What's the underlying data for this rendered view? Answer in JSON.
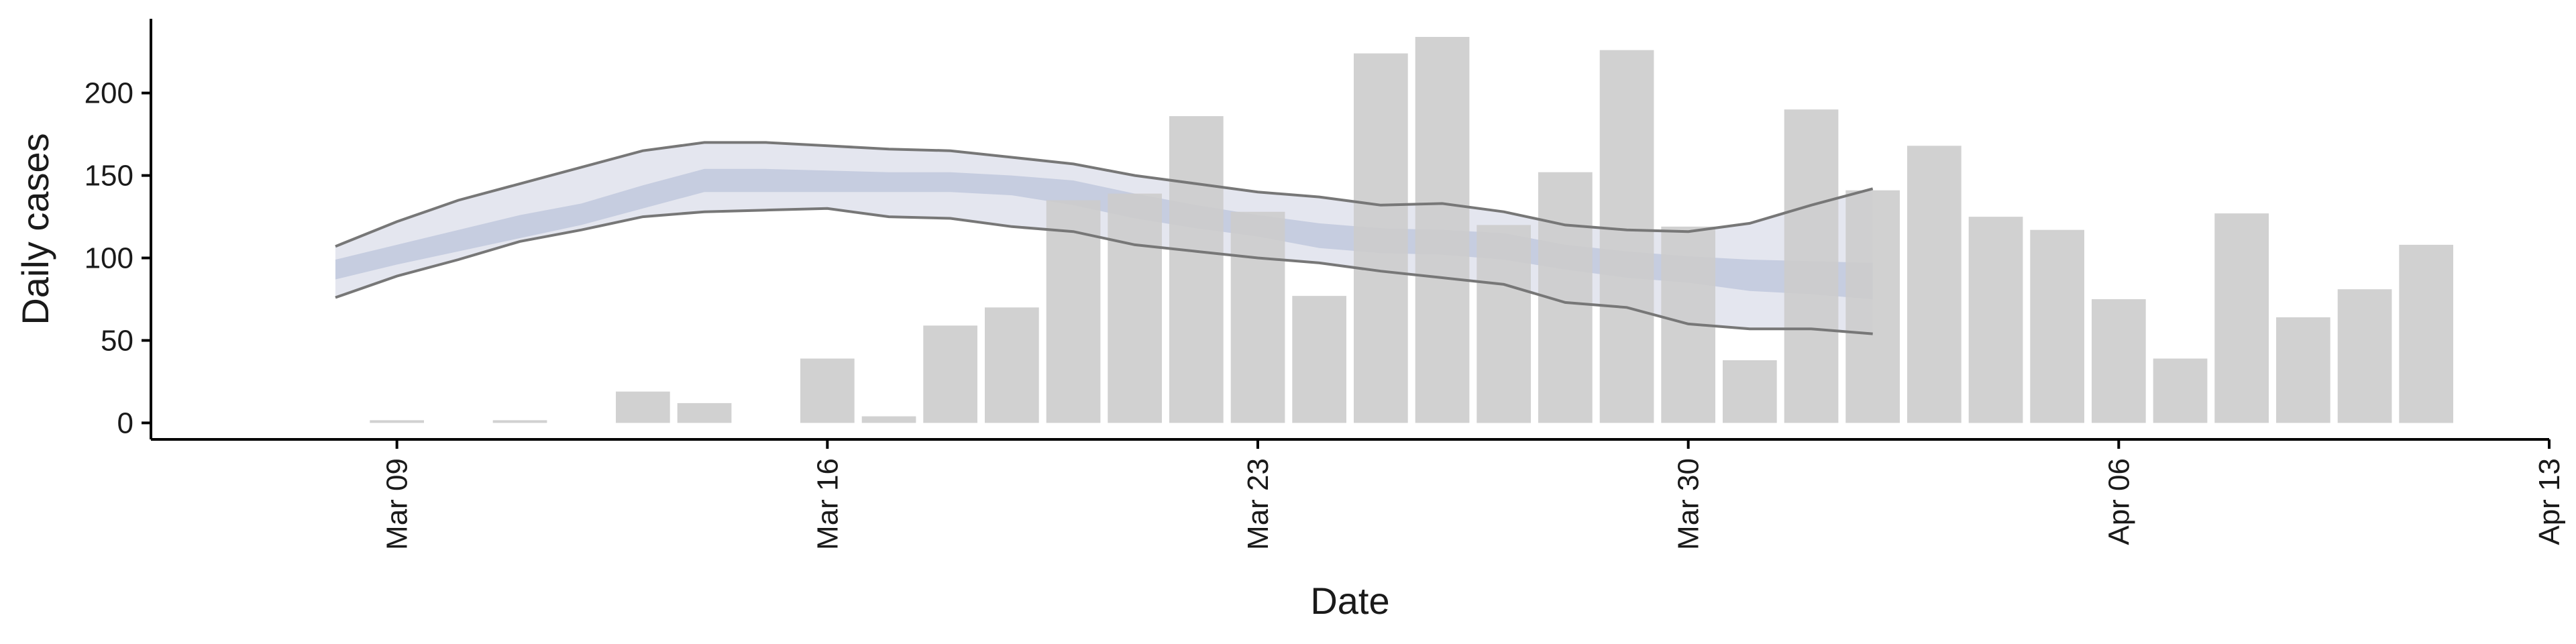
{
  "chart_data": {
    "type": "bar",
    "xlabel": "Date",
    "ylabel": "Daily cases",
    "xlim": [
      "2020-03-05",
      "2020-04-13"
    ],
    "ylim": [
      -10,
      245
    ],
    "x_ticks": [
      {
        "date": "2020-03-09",
        "label": "Mar 09"
      },
      {
        "date": "2020-03-16",
        "label": "Mar 16"
      },
      {
        "date": "2020-03-23",
        "label": "Mar 23"
      },
      {
        "date": "2020-03-30",
        "label": "Mar 30"
      },
      {
        "date": "2020-04-06",
        "label": "Apr 06"
      },
      {
        "date": "2020-04-13",
        "label": "Apr 13"
      }
    ],
    "y_ticks": [
      0,
      50,
      100,
      150,
      200
    ],
    "grid": false,
    "bars": {
      "dates": [
        "2020-03-09",
        "2020-03-10",
        "2020-03-11",
        "2020-03-12",
        "2020-03-13",
        "2020-03-14",
        "2020-03-15",
        "2020-03-16",
        "2020-03-17",
        "2020-03-18",
        "2020-03-19",
        "2020-03-20",
        "2020-03-21",
        "2020-03-22",
        "2020-03-23",
        "2020-03-24",
        "2020-03-25",
        "2020-03-26",
        "2020-03-27",
        "2020-03-28",
        "2020-03-29",
        "2020-03-30",
        "2020-03-31",
        "2020-04-01",
        "2020-04-02",
        "2020-04-03",
        "2020-04-04",
        "2020-04-05",
        "2020-04-06",
        "2020-04-07",
        "2020-04-08",
        "2020-04-09",
        "2020-04-10",
        "2020-04-11"
      ],
      "values": [
        1,
        0,
        1,
        0,
        19,
        12,
        0,
        39,
        4,
        59,
        70,
        135,
        139,
        186,
        128,
        77,
        224,
        234,
        120,
        152,
        226,
        119,
        38,
        190,
        141,
        168,
        125,
        117,
        75,
        39,
        127,
        64,
        81,
        108
      ],
      "color": "#cccccc"
    },
    "band": {
      "dates": [
        "2020-03-08",
        "2020-03-09",
        "2020-03-10",
        "2020-03-11",
        "2020-03-12",
        "2020-03-13",
        "2020-03-14",
        "2020-03-15",
        "2020-03-16",
        "2020-03-17",
        "2020-03-18",
        "2020-03-19",
        "2020-03-20",
        "2020-03-21",
        "2020-03-22",
        "2020-03-23",
        "2020-03-24",
        "2020-03-25",
        "2020-03-26",
        "2020-03-27",
        "2020-03-28",
        "2020-03-29",
        "2020-03-30",
        "2020-03-31",
        "2020-04-01",
        "2020-04-02"
      ],
      "outer_lower": [
        76,
        89,
        99,
        110,
        117,
        125,
        128,
        129,
        130,
        125,
        124,
        119,
        116,
        108,
        104,
        100,
        97,
        92,
        88,
        84,
        73,
        70,
        60,
        57,
        57,
        54
      ],
      "outer_upper": [
        107,
        122,
        135,
        145,
        155,
        165,
        170,
        170,
        168,
        166,
        165,
        161,
        157,
        150,
        145,
        140,
        137,
        132,
        133,
        128,
        120,
        117,
        116,
        121,
        132,
        142
      ],
      "inner_lower": [
        87,
        96,
        104,
        112,
        120,
        130,
        140,
        140,
        140,
        140,
        140,
        138,
        132,
        124,
        118,
        113,
        106,
        103,
        102,
        99,
        93,
        88,
        85,
        80,
        78,
        75
      ],
      "inner_upper": [
        99,
        108,
        117,
        126,
        133,
        144,
        154,
        154,
        153,
        152,
        152,
        150,
        147,
        139,
        132,
        126,
        121,
        118,
        117,
        115,
        108,
        104,
        101,
        99,
        98,
        97
      ],
      "outer_color": "#e4e6ef",
      "inner_color": "#c6cde0",
      "line_color": "#777777"
    }
  }
}
